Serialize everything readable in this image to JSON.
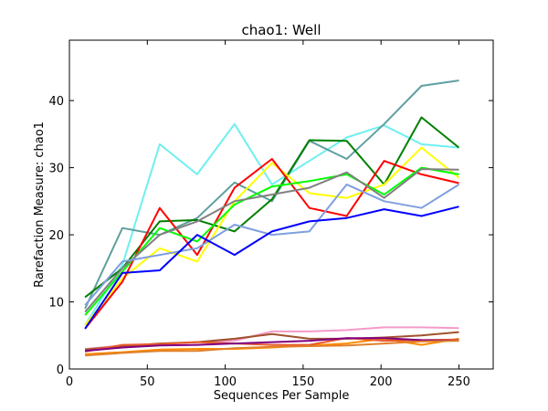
{
  "chart_data": {
    "type": "line",
    "title": "chao1: Well",
    "xlabel": "Sequences Per Sample",
    "ylabel": "Rarefaction Measure: chao1",
    "xlim": [
      0,
      272
    ],
    "ylim": [
      0,
      49
    ],
    "xticks": [
      0,
      50,
      100,
      150,
      200,
      250
    ],
    "yticks": [
      0,
      10,
      20,
      30,
      40
    ],
    "grid": false,
    "legend": "none",
    "x": [
      10,
      34,
      58,
      82,
      106,
      130,
      154,
      178,
      202,
      226,
      250
    ],
    "series": [
      {
        "color": "#6fefef",
        "values": [
          6.5,
          15.5,
          33.5,
          29.0,
          36.5,
          27.5,
          31.0,
          34.5,
          36.3,
          33.5,
          33.0
        ]
      },
      {
        "color": "#5f9f9f",
        "values": [
          9.0,
          21.0,
          20.0,
          22.5,
          27.8,
          25.0,
          34.0,
          31.3,
          36.5,
          42.2,
          43.0
        ]
      },
      {
        "color": "#008000",
        "values": [
          10.7,
          15.0,
          22.0,
          22.2,
          20.5,
          25.3,
          34.1,
          34.0,
          27.5,
          37.5,
          33.0
        ]
      },
      {
        "color": "#ffff00",
        "values": [
          6.5,
          13.5,
          18.0,
          16.0,
          25.0,
          30.7,
          26.2,
          25.5,
          27.5,
          33.0,
          28.5
        ]
      },
      {
        "color": "#ff0000",
        "values": [
          6.0,
          13.0,
          24.0,
          17.0,
          27.0,
          31.3,
          24.0,
          22.8,
          31.0,
          29.0,
          27.7
        ]
      },
      {
        "color": "#00ff00",
        "values": [
          8.0,
          14.5,
          21.0,
          19.0,
          24.5,
          27.2,
          28.0,
          29.0,
          26.0,
          30.0,
          29.0
        ]
      },
      {
        "color": "#808080",
        "values": [
          8.5,
          15.0,
          20.0,
          22.0,
          25.0,
          26.0,
          27.0,
          29.3,
          25.5,
          29.8,
          29.7
        ]
      },
      {
        "color": "#7f9fdf",
        "values": [
          9.5,
          16.0,
          17.0,
          18.0,
          21.5,
          20.0,
          20.5,
          27.5,
          25.0,
          24.0,
          27.5
        ]
      },
      {
        "color": "#0000ff",
        "values": [
          6.0,
          14.3,
          14.7,
          20.0,
          17.0,
          20.5,
          22.0,
          22.5,
          23.8,
          22.8,
          24.2
        ]
      },
      {
        "color": "#f499c8",
        "values": [
          3.0,
          3.5,
          3.7,
          4.0,
          4.2,
          5.6,
          5.6,
          5.8,
          6.2,
          6.2,
          6.1
        ]
      },
      {
        "color": "#a0522d",
        "values": [
          2.9,
          3.4,
          3.8,
          4.0,
          4.5,
          5.2,
          4.5,
          4.5,
          4.7,
          5.0,
          5.5
        ]
      },
      {
        "color": "#ff8c00",
        "values": [
          2.2,
          2.5,
          2.9,
          3.0,
          3.0,
          3.2,
          3.5,
          3.8,
          4.5,
          3.6,
          4.5
        ]
      },
      {
        "color": "#e85a2a",
        "values": [
          2.6,
          3.6,
          3.7,
          4.0,
          3.8,
          3.6,
          3.6,
          4.6,
          4.2,
          4.3,
          4.4
        ]
      },
      {
        "color": "#800080",
        "values": [
          2.7,
          3.2,
          3.5,
          3.6,
          3.8,
          4.0,
          4.2,
          4.6,
          4.6,
          4.3,
          4.2
        ]
      },
      {
        "color": "#e0802a",
        "values": [
          2.0,
          2.4,
          2.7,
          2.7,
          3.1,
          3.3,
          3.4,
          3.5,
          3.8,
          4.1,
          4.2
        ]
      }
    ]
  }
}
